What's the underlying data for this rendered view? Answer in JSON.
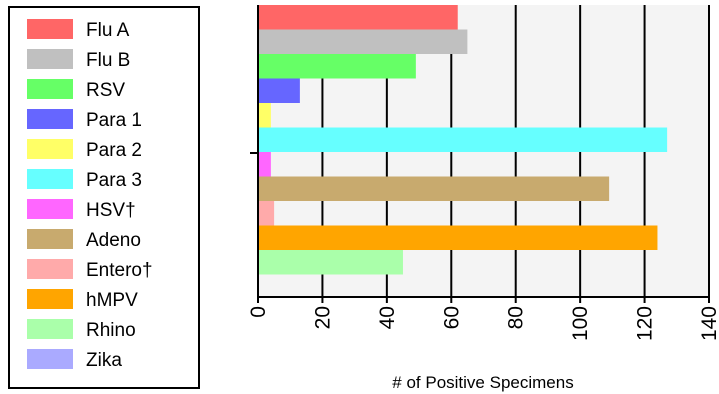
{
  "chart_data": {
    "type": "bar",
    "orientation": "horizontal",
    "title": "",
    "xlabel": "# of Positive Specimens",
    "ylabel": "",
    "xlim": [
      0,
      140
    ],
    "x_ticks": [
      "0",
      "20",
      "40",
      "60",
      "80",
      "100",
      "120",
      "140"
    ],
    "grid": "vertical lines at major ticks",
    "legend_position": "left",
    "series": [
      {
        "name": "Flu A",
        "value": 62,
        "color": "#ff6666"
      },
      {
        "name": "Flu B",
        "value": 65,
        "color": "#c0c0c0"
      },
      {
        "name": "RSV",
        "value": 49,
        "color": "#66ff66"
      },
      {
        "name": "Para 1",
        "value": 13,
        "color": "#6666ff"
      },
      {
        "name": "Para 2",
        "value": 4,
        "color": "#ffff66"
      },
      {
        "name": "Para 3",
        "value": 127,
        "color": "#66ffff"
      },
      {
        "name": "HSV†",
        "value": 4,
        "color": "#ff66ff"
      },
      {
        "name": "Adeno",
        "value": 109,
        "color": "#c8aa6e"
      },
      {
        "name": "Entero†",
        "value": 5,
        "color": "#ffaaaa"
      },
      {
        "name": "hMPV",
        "value": 124,
        "color": "#ffa500"
      },
      {
        "name": "Rhino",
        "value": 45,
        "color": "#aaffaa"
      },
      {
        "name": "Zika",
        "value": 0,
        "color": "#aaaaff"
      }
    ],
    "plot_background": "#f4f4f4"
  }
}
